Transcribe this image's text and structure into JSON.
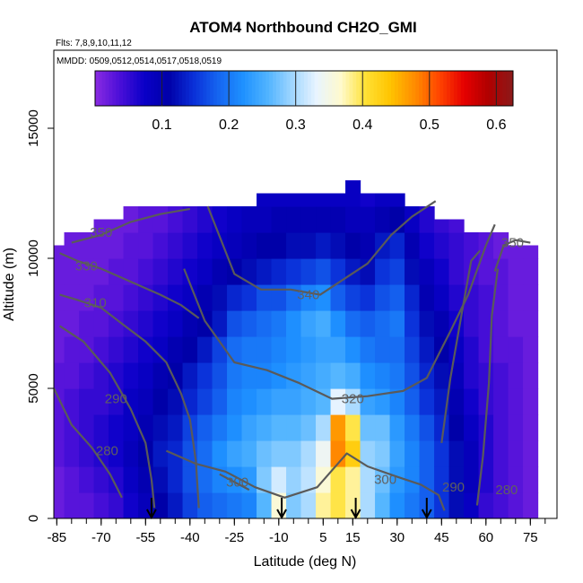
{
  "chart_data": {
    "type": "heatmap",
    "title": "ATOM4 Northbound CH2O_GMI",
    "flights_label": "Flts: 7,8,9,10,11,12",
    "dates_label": "MMDD: 0509,0512,0514,0517,0518,0519",
    "xlabel": "Latitude (deg N)",
    "ylabel": "Altitude (m)",
    "xlim": [
      -86,
      84
    ],
    "ylim": [
      0,
      18000
    ],
    "x_ticks": [
      -85,
      -70,
      -55,
      -40,
      -25,
      -10,
      5,
      15,
      30,
      45,
      60,
      75
    ],
    "y_ticks": [
      0,
      5000,
      10000,
      15000
    ],
    "colorbar": {
      "range": [
        0,
        0.625
      ],
      "ticks": [
        0.1,
        0.2,
        0.3,
        0.4,
        0.5,
        0.6
      ],
      "colors": [
        "#8a2be2",
        "#4b0fd8",
        "#0a00c8",
        "#0000a8",
        "#0a2fd8",
        "#1565f0",
        "#1e90ff",
        "#4fb3ff",
        "#9fd6ff",
        "#e8f4ff",
        "#fffacd",
        "#ffe135",
        "#ffc400",
        "#ff8c00",
        "#ff4500",
        "#e60000",
        "#b00000",
        "#8b1a1a"
      ]
    },
    "columns": [
      {
        "x": -85,
        "top": 10500,
        "vals": [
          0.02,
          0.02,
          0.03,
          0.03,
          0.03,
          0.03,
          0.02,
          0.02,
          0.02,
          0.02,
          0.02
        ]
      },
      {
        "x": -80,
        "top": 11000,
        "vals": [
          0.03,
          0.03,
          0.04,
          0.04,
          0.04,
          0.03,
          0.03,
          0.02,
          0.02,
          0.02,
          0.02,
          0.02
        ]
      },
      {
        "x": -75,
        "top": 11000,
        "vals": [
          0.03,
          0.04,
          0.05,
          0.05,
          0.05,
          0.04,
          0.03,
          0.03,
          0.02,
          0.02,
          0.02,
          0.02
        ]
      },
      {
        "x": -70,
        "top": 11500,
        "vals": [
          0.04,
          0.05,
          0.06,
          0.06,
          0.05,
          0.05,
          0.04,
          0.03,
          0.03,
          0.02,
          0.02,
          0.02
        ]
      },
      {
        "x": -65,
        "top": 11500,
        "vals": [
          0.05,
          0.06,
          0.07,
          0.07,
          0.06,
          0.06,
          0.05,
          0.04,
          0.03,
          0.03,
          0.02,
          0.02
        ]
      },
      {
        "x": -60,
        "top": 12000,
        "vals": [
          0.07,
          0.08,
          0.09,
          0.08,
          0.08,
          0.07,
          0.06,
          0.05,
          0.04,
          0.03,
          0.03,
          0.02
        ]
      },
      {
        "x": -55,
        "top": 12000,
        "vals": [
          0.09,
          0.1,
          0.11,
          0.1,
          0.09,
          0.08,
          0.07,
          0.06,
          0.05,
          0.04,
          0.03,
          0.03
        ]
      },
      {
        "x": -50,
        "top": 12000,
        "vals": [
          0.11,
          0.12,
          0.13,
          0.12,
          0.11,
          0.1,
          0.08,
          0.07,
          0.06,
          0.05,
          0.04,
          0.03
        ]
      },
      {
        "x": -45,
        "top": 12000,
        "vals": [
          0.13,
          0.14,
          0.14,
          0.13,
          0.12,
          0.11,
          0.1,
          0.08,
          0.07,
          0.06,
          0.05,
          0.04
        ]
      },
      {
        "x": -40,
        "top": 12000,
        "vals": [
          0.16,
          0.17,
          0.17,
          0.16,
          0.14,
          0.13,
          0.11,
          0.1,
          0.08,
          0.07,
          0.06,
          0.05
        ]
      },
      {
        "x": -35,
        "top": 12000,
        "vals": [
          0.18,
          0.19,
          0.19,
          0.18,
          0.16,
          0.15,
          0.13,
          0.11,
          0.1,
          0.08,
          0.07,
          0.06
        ]
      },
      {
        "x": -30,
        "top": 12000,
        "vals": [
          0.19,
          0.21,
          0.22,
          0.2,
          0.18,
          0.17,
          0.16,
          0.13,
          0.12,
          0.1,
          0.08,
          0.07
        ]
      },
      {
        "x": -25,
        "top": 12000,
        "vals": [
          0.2,
          0.22,
          0.24,
          0.22,
          0.21,
          0.2,
          0.19,
          0.17,
          0.14,
          0.11,
          0.09,
          0.08
        ]
      },
      {
        "x": -20,
        "top": 12000,
        "vals": [
          0.21,
          0.23,
          0.25,
          0.24,
          0.22,
          0.21,
          0.2,
          0.18,
          0.15,
          0.12,
          0.1,
          0.09
        ]
      },
      {
        "x": -15,
        "top": 12500,
        "vals": [
          0.26,
          0.28,
          0.27,
          0.25,
          0.23,
          0.21,
          0.2,
          0.19,
          0.17,
          0.13,
          0.11,
          0.09,
          0.08
        ]
      },
      {
        "x": -10,
        "top": 12500,
        "vals": [
          0.36,
          0.32,
          0.28,
          0.26,
          0.24,
          0.22,
          0.21,
          0.2,
          0.17,
          0.14,
          0.11,
          0.1,
          0.08
        ]
      },
      {
        "x": -5,
        "top": 12500,
        "vals": [
          0.28,
          0.29,
          0.28,
          0.26,
          0.24,
          0.23,
          0.22,
          0.22,
          0.19,
          0.15,
          0.12,
          0.1,
          0.08
        ]
      },
      {
        "x": 0,
        "top": 12500,
        "vals": [
          0.3,
          0.31,
          0.3,
          0.27,
          0.25,
          0.24,
          0.23,
          0.24,
          0.21,
          0.16,
          0.12,
          0.1,
          0.08
        ]
      },
      {
        "x": 5,
        "top": 12500,
        "vals": [
          0.38,
          0.36,
          0.34,
          0.3,
          0.26,
          0.25,
          0.24,
          0.25,
          0.22,
          0.17,
          0.13,
          0.1,
          0.08
        ]
      },
      {
        "x": 10,
        "top": 12500,
        "vals": [
          0.4,
          0.4,
          0.48,
          0.47,
          0.33,
          0.26,
          0.24,
          0.22,
          0.18,
          0.15,
          0.12,
          0.1,
          0.08
        ]
      },
      {
        "x": 15,
        "top": 13000,
        "vals": [
          0.38,
          0.38,
          0.43,
          0.4,
          0.3,
          0.25,
          0.22,
          0.19,
          0.16,
          0.13,
          0.11,
          0.09,
          0.08,
          0.06
        ]
      },
      {
        "x": 20,
        "top": 12500,
        "vals": [
          0.3,
          0.3,
          0.29,
          0.27,
          0.24,
          0.22,
          0.2,
          0.18,
          0.15,
          0.12,
          0.1,
          0.09,
          0.07
        ]
      },
      {
        "x": 25,
        "top": 12500,
        "vals": [
          0.26,
          0.27,
          0.28,
          0.27,
          0.23,
          0.21,
          0.19,
          0.19,
          0.17,
          0.15,
          0.13,
          0.1,
          0.08
        ]
      },
      {
        "x": 30,
        "top": 12500,
        "vals": [
          0.22,
          0.23,
          0.24,
          0.23,
          0.21,
          0.2,
          0.19,
          0.2,
          0.18,
          0.16,
          0.14,
          0.11,
          0.08
        ]
      },
      {
        "x": 35,
        "top": 12000,
        "vals": [
          0.2,
          0.21,
          0.21,
          0.2,
          0.18,
          0.17,
          0.16,
          0.15,
          0.14,
          0.12,
          0.1,
          0.08
        ]
      },
      {
        "x": 40,
        "top": 12000,
        "vals": [
          0.18,
          0.18,
          0.18,
          0.17,
          0.15,
          0.14,
          0.13,
          0.12,
          0.1,
          0.09,
          0.07,
          0.06
        ]
      },
      {
        "x": 45,
        "top": 11500,
        "vals": [
          0.15,
          0.15,
          0.15,
          0.14,
          0.13,
          0.12,
          0.11,
          0.1,
          0.08,
          0.07,
          0.06,
          0.05
        ]
      },
      {
        "x": 50,
        "top": 11500,
        "vals": [
          0.12,
          0.12,
          0.12,
          0.11,
          0.1,
          0.09,
          0.08,
          0.07,
          0.06,
          0.05,
          0.05,
          0.04
        ]
      },
      {
        "x": 55,
        "top": 11000,
        "vals": [
          0.08,
          0.09,
          0.09,
          0.08,
          0.07,
          0.06,
          0.06,
          0.05,
          0.05,
          0.04,
          0.04
        ]
      },
      {
        "x": 60,
        "top": 11000,
        "vals": [
          0.05,
          0.06,
          0.06,
          0.06,
          0.05,
          0.05,
          0.04,
          0.04,
          0.04,
          0.03,
          0.03
        ]
      },
      {
        "x": 65,
        "top": 11000,
        "vals": [
          0.04,
          0.04,
          0.04,
          0.04,
          0.04,
          0.04,
          0.03,
          0.03,
          0.03,
          0.03,
          0.02
        ]
      },
      {
        "x": 70,
        "top": 10500,
        "vals": [
          0.03,
          0.03,
          0.03,
          0.03,
          0.03,
          0.03,
          0.03,
          0.02,
          0.02,
          0.02,
          0.02
        ]
      },
      {
        "x": 75,
        "top": 10500,
        "vals": [
          0.02,
          0.02,
          0.02,
          0.02,
          0.02,
          0.02,
          0.02,
          0.02,
          0.02,
          0.02,
          0.02
        ]
      }
    ],
    "contours": [
      {
        "label": "350",
        "points": [
          [
            -80,
            10600
          ],
          [
            -70,
            10900
          ],
          [
            -60,
            11400
          ],
          [
            -50,
            11700
          ],
          [
            -40,
            11900
          ]
        ],
        "label_at": [
          -70,
          11000
        ]
      },
      {
        "label": "330",
        "points": [
          [
            -84,
            10200
          ],
          [
            -78,
            9900
          ],
          [
            -70,
            9600
          ],
          [
            -60,
            9100
          ],
          [
            -50,
            8600
          ],
          [
            -43,
            8200
          ],
          [
            -37,
            7700
          ]
        ],
        "label_at": [
          -75,
          9700
        ]
      },
      {
        "label": "310",
        "points": [
          [
            -84,
            8600
          ],
          [
            -78,
            8400
          ],
          [
            -70,
            8100
          ],
          [
            -62,
            7400
          ],
          [
            -55,
            6800
          ],
          [
            -48,
            6000
          ],
          [
            -43,
            4800
          ],
          [
            -40,
            3800
          ],
          [
            -38,
            2200
          ],
          [
            -37,
            400
          ]
        ],
        "label_at": [
          -72,
          8300
        ]
      },
      {
        "label": "340",
        "points": [
          [
            -34,
            12000
          ],
          [
            -25,
            9400
          ],
          [
            -16,
            8800
          ],
          [
            -6,
            8800
          ],
          [
            4,
            8600
          ],
          [
            12,
            9200
          ],
          [
            20,
            9800
          ],
          [
            28,
            10900
          ],
          [
            35,
            11600
          ],
          [
            43,
            12200
          ]
        ],
        "label_at": [
          0,
          8600
        ]
      },
      {
        "label": "290",
        "points": [
          [
            -84,
            7400
          ],
          [
            -76,
            6800
          ],
          [
            -67,
            5600
          ],
          [
            -60,
            4200
          ],
          [
            -55,
            2900
          ],
          [
            -53,
            1500
          ],
          [
            -52,
            400
          ]
        ],
        "label_at": [
          -65,
          4600
        ]
      },
      {
        "label": "280",
        "points": [
          [
            -86,
            5000
          ],
          [
            -80,
            3600
          ],
          [
            -73,
            2700
          ],
          [
            -67,
            1700
          ],
          [
            -63,
            800
          ]
        ],
        "label_at": [
          -68,
          2600
        ]
      },
      {
        "label": "320",
        "points": [
          [
            -42,
            9600
          ],
          [
            -35,
            7600
          ],
          [
            -25,
            6000
          ],
          [
            -14,
            5700
          ],
          [
            -3,
            5200
          ],
          [
            8,
            4600
          ],
          [
            20,
            4700
          ],
          [
            32,
            4900
          ],
          [
            40,
            5400
          ],
          [
            48,
            7200
          ],
          [
            54,
            8600
          ],
          [
            60,
            10500
          ],
          [
            63,
            11300
          ]
        ],
        "label_at": [
          15,
          4600
        ]
      },
      {
        "label": "300",
        "points": [
          [
            -48,
            2600
          ],
          [
            -38,
            2100
          ],
          [
            -28,
            1800
          ],
          [
            -18,
            1200
          ],
          [
            -8,
            800
          ],
          [
            3,
            1200
          ],
          [
            13,
            2500
          ],
          [
            20,
            2000
          ],
          [
            30,
            1600
          ],
          [
            38,
            1300
          ],
          [
            44,
            900
          ],
          [
            46,
            300
          ]
        ],
        "label_at": [
          26,
          1500
        ]
      },
      {
        "label": "300",
        "points": [
          [
            -30,
            1700
          ],
          [
            -20,
            1100
          ]
        ],
        "label_at": [
          -24,
          1400
        ]
      },
      {
        "label": "290",
        "points": [
          [
            45,
            2900
          ],
          [
            48,
            5400
          ],
          [
            52,
            8000
          ],
          [
            55,
            9900
          ],
          [
            58,
            10300
          ]
        ],
        "label_at": [
          49,
          1200
        ]
      },
      {
        "label": "280",
        "points": [
          [
            57,
            500
          ],
          [
            59,
            2400
          ],
          [
            61,
            5200
          ],
          [
            62,
            7800
          ],
          [
            64,
            9600
          ]
        ],
        "label_at": [
          67,
          1100
        ]
      },
      {
        "label": "350",
        "points": [
          [
            63,
            9500
          ],
          [
            66,
            10500
          ],
          [
            70,
            10700
          ],
          [
            75,
            10600
          ]
        ],
        "label_at": [
          69,
          10600
        ]
      }
    ],
    "arrows_x": [
      -53,
      -9,
      16,
      40
    ]
  }
}
